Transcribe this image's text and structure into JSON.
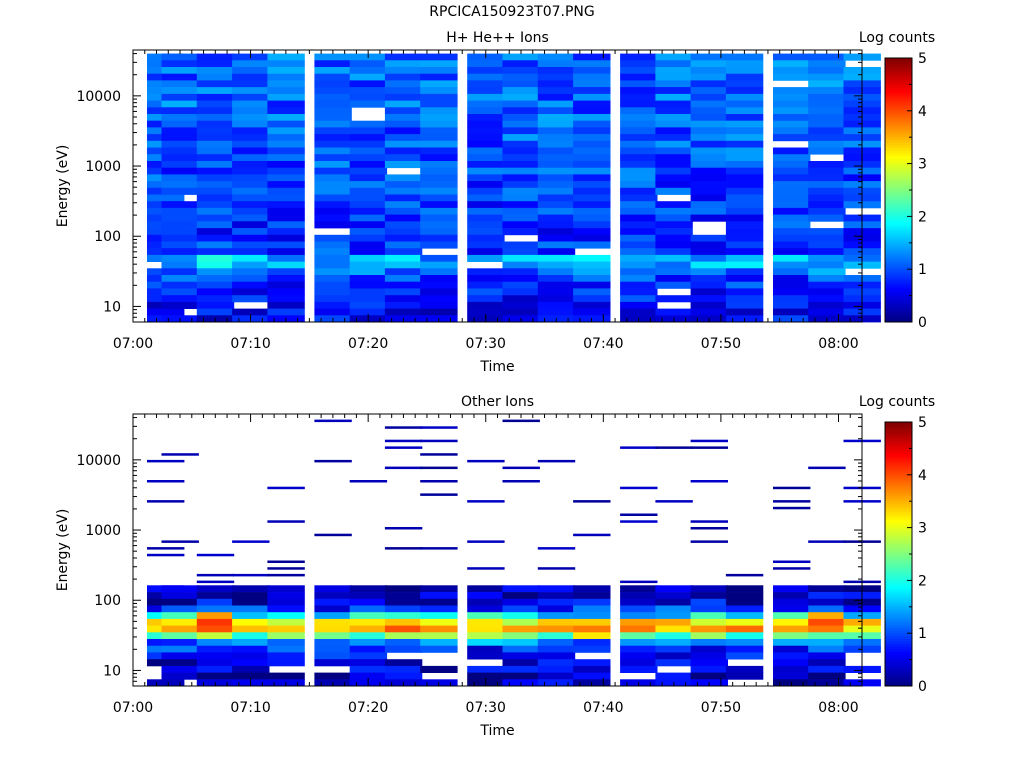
{
  "page_title": "RPCICA150923T07.PNG",
  "chart_data": [
    {
      "type": "heatmap",
      "title": "H+ He++ Ions",
      "xlabel": "Time",
      "ylabel": "Energy (eV)",
      "x_range": [
        "07:00",
        "08:02"
      ],
      "x_ticks": [
        "07:00",
        "07:10",
        "07:20",
        "07:30",
        "07:40",
        "07:50",
        "08:00"
      ],
      "y_scale": "log",
      "y_range": [
        6,
        45000
      ],
      "y_ticks": [
        "10",
        "100",
        "1000",
        "10000"
      ],
      "colorbar": {
        "label": "Log counts",
        "range": [
          0,
          5
        ],
        "ticks": [
          "0",
          "1",
          "2",
          "3",
          "4",
          "5"
        ]
      },
      "time_columns": [
        "07:01",
        "07:04",
        "07:07",
        "07:10",
        "07:13",
        "07:17",
        "07:20",
        "07:23",
        "07:26",
        "07:30",
        "07:33",
        "07:36",
        "07:39",
        "07:43",
        "07:46",
        "07:49",
        "07:52",
        "07:56",
        "07:59",
        "08:02"
      ],
      "energy_band_profile": [
        {
          "energy": 8,
          "log_counts": 0.6
        },
        {
          "energy": 12,
          "log_counts": 0.7
        },
        {
          "energy": 18,
          "log_counts": 0.8
        },
        {
          "energy": 25,
          "log_counts": 0.9
        },
        {
          "energy": 35,
          "log_counts": 1.3
        },
        {
          "energy": 45,
          "log_counts": 1.6
        },
        {
          "energy": 60,
          "log_counts": 0.9
        },
        {
          "energy": 100,
          "log_counts": 0.8
        },
        {
          "energy": 1000,
          "log_counts": 1.0
        },
        {
          "energy": 10000,
          "log_counts": 1.1
        },
        {
          "energy": 40000,
          "log_counts": 1.1
        }
      ],
      "peaks": [
        {
          "time": "07:07",
          "energy": 45,
          "log_counts": 2.5
        },
        {
          "time": "07:23",
          "energy": 42,
          "log_counts": 1.8
        },
        {
          "time": "07:39",
          "energy": 40,
          "log_counts": 2.0
        },
        {
          "time": "07:59",
          "energy": 45,
          "log_counts": 1.8
        }
      ]
    },
    {
      "type": "heatmap",
      "title": "Other Ions",
      "xlabel": "Time",
      "ylabel": "Energy (eV)",
      "x_range": [
        "07:00",
        "08:02"
      ],
      "x_ticks": [
        "07:00",
        "07:10",
        "07:20",
        "07:30",
        "07:40",
        "07:50",
        "08:00"
      ],
      "y_scale": "log",
      "y_range": [
        6,
        45000
      ],
      "y_ticks": [
        "10",
        "100",
        "1000",
        "10000"
      ],
      "colorbar": {
        "label": "Log counts",
        "range": [
          0,
          5
        ],
        "ticks": [
          "0",
          "1",
          "2",
          "3",
          "4",
          "5"
        ]
      },
      "time_columns": [
        "07:01",
        "07:04",
        "07:07",
        "07:10",
        "07:13",
        "07:17",
        "07:20",
        "07:23",
        "07:26",
        "07:30",
        "07:33",
        "07:36",
        "07:39",
        "07:43",
        "07:46",
        "07:49",
        "07:52",
        "07:56",
        "07:59",
        "08:02"
      ],
      "energy_band_profile": [
        {
          "energy": 8,
          "log_counts": 0.3
        },
        {
          "energy": 12,
          "log_counts": 0.4
        },
        {
          "energy": 18,
          "log_counts": 0.6
        },
        {
          "energy": 25,
          "log_counts": 1.2
        },
        {
          "energy": 32,
          "log_counts": 2.6
        },
        {
          "energy": 40,
          "log_counts": 3.5
        },
        {
          "energy": 50,
          "log_counts": 3.1
        },
        {
          "energy": 60,
          "log_counts": 1.8
        },
        {
          "energy": 80,
          "log_counts": 0.6
        },
        {
          "energy": 150,
          "log_counts": 0.2
        },
        {
          "energy": 1000,
          "log_counts": 0.1
        },
        {
          "energy": 10000,
          "log_counts": 0.1
        }
      ],
      "peaks": [
        {
          "time": "07:07",
          "energy": 50,
          "log_counts": 4.6
        },
        {
          "time": "07:23",
          "energy": 45,
          "log_counts": 4.0
        },
        {
          "time": "07:39",
          "energy": 40,
          "log_counts": 4.0
        },
        {
          "time": "07:59",
          "energy": 48,
          "log_counts": 4.1
        }
      ]
    }
  ]
}
